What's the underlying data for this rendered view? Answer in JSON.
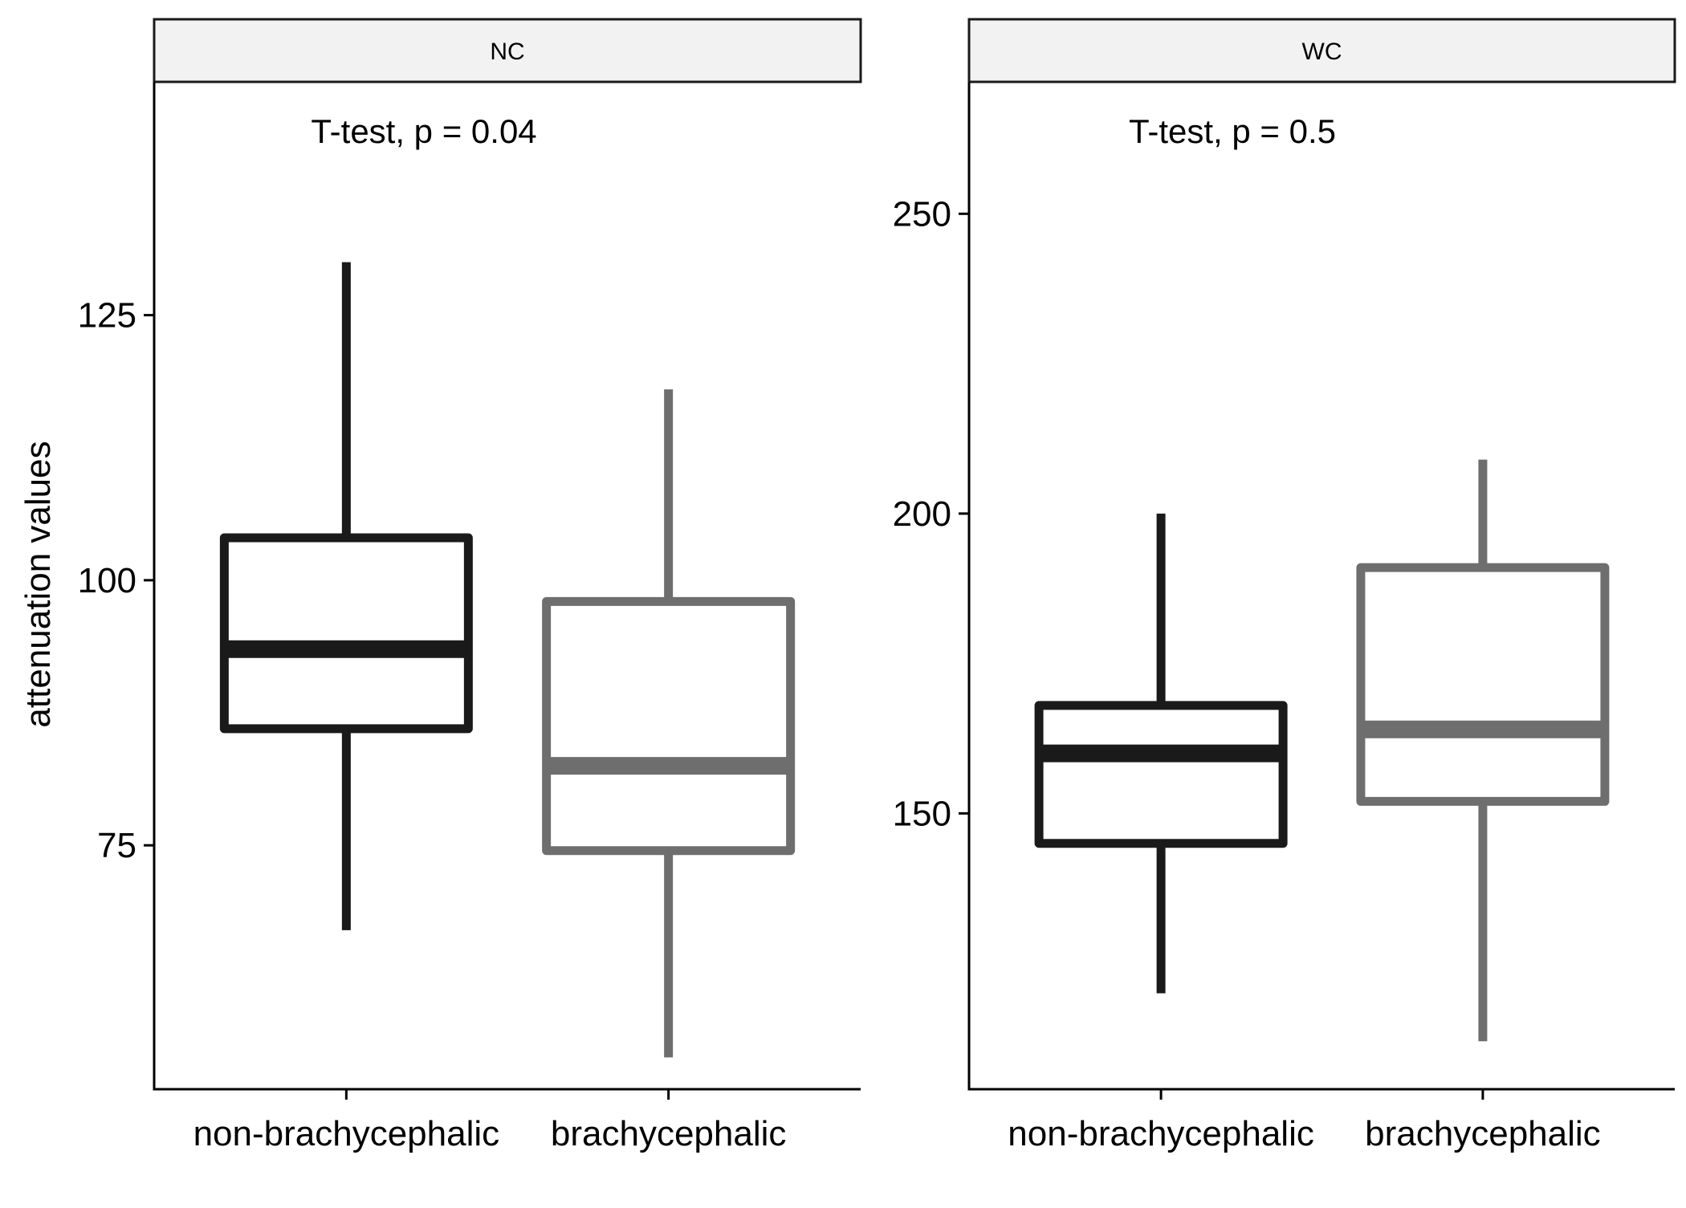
{
  "chart_data": {
    "type": "boxplot",
    "ylabel": "attenuation values",
    "categories": [
      "non-brachycephalic",
      "brachycephalic"
    ],
    "series_colors": [
      "#1a1a1a",
      "#6e6e6e"
    ],
    "grid": false,
    "panels": [
      {
        "strip": "NC",
        "annotation": "T-test, p = 0.04",
        "ylim": [
          52,
          147
        ],
        "yticks": [
          75,
          100,
          125
        ],
        "boxes": [
          {
            "category": "non-brachycephalic",
            "whisker_low": 67,
            "q1": 86,
            "median": 93.5,
            "q3": 104,
            "whisker_high": 130
          },
          {
            "category": "brachycephalic",
            "whisker_low": 55,
            "q1": 74.5,
            "median": 82.5,
            "q3": 98,
            "whisker_high": 118
          }
        ]
      },
      {
        "strip": "WC",
        "annotation": "T-test, p = 0.5",
        "ylim": [
          104,
          272
        ],
        "yticks": [
          150,
          200,
          250
        ],
        "boxes": [
          {
            "category": "non-brachycephalic",
            "whisker_low": 120,
            "q1": 145,
            "median": 160,
            "q3": 168,
            "whisker_high": 200
          },
          {
            "category": "brachycephalic",
            "whisker_low": 112,
            "q1": 152,
            "median": 164,
            "q3": 191,
            "whisker_high": 209
          }
        ]
      }
    ]
  }
}
